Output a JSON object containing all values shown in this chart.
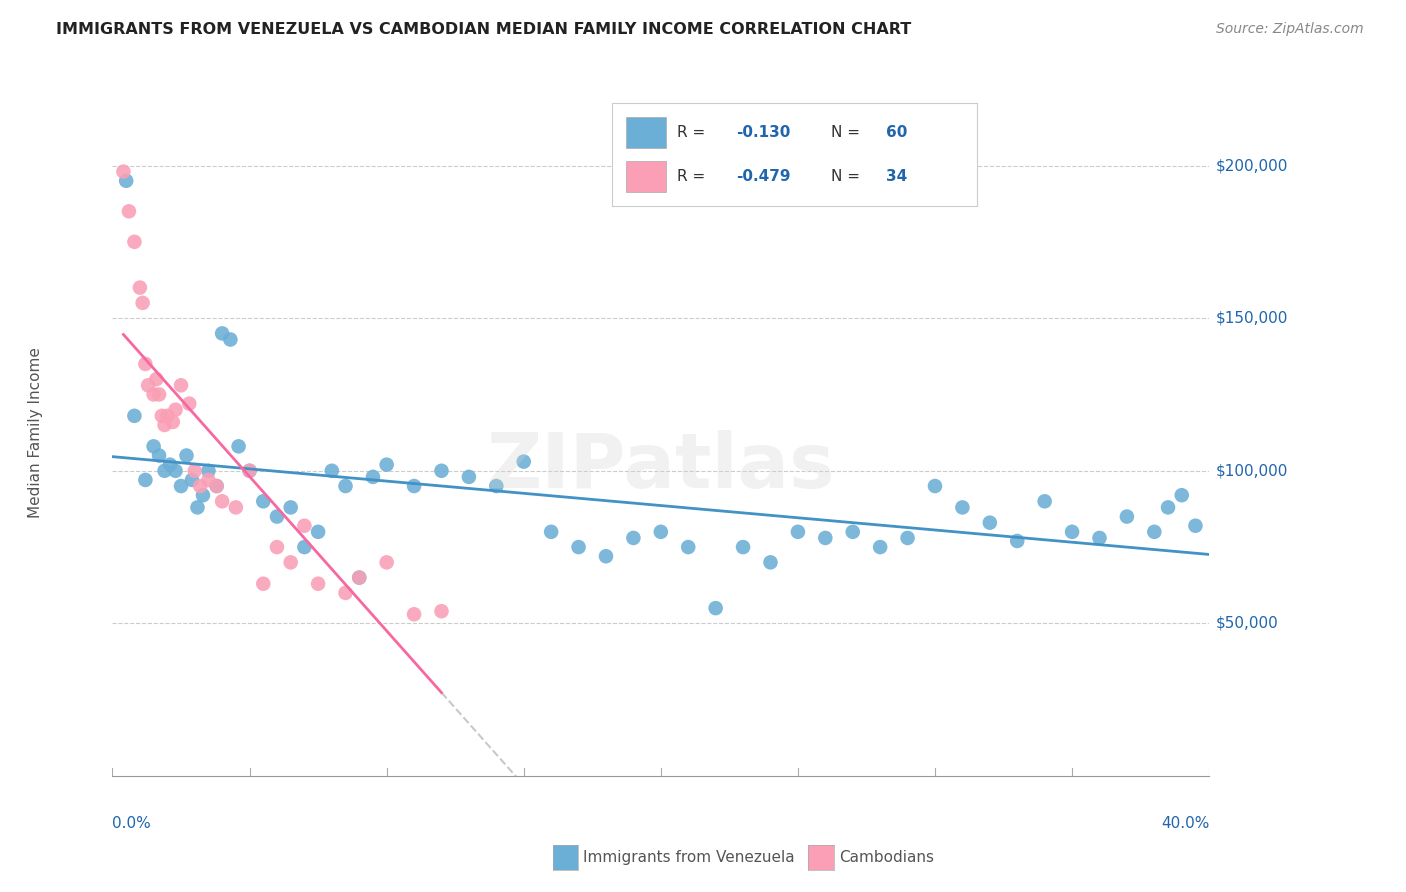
{
  "title": "IMMIGRANTS FROM VENEZUELA VS CAMBODIAN MEDIAN FAMILY INCOME CORRELATION CHART",
  "source": "Source: ZipAtlas.com",
  "ylabel": "Median Family Income",
  "legend_blue_label": "Immigrants from Venezuela",
  "legend_pink_label": "Cambodians",
  "watermark": "ZIPatlas",
  "blue_dot_color": "#6baed6",
  "pink_dot_color": "#fa9fb5",
  "blue_line_color": "#4292c6",
  "pink_line_color": "#f768a1",
  "dashed_ext_color": "#c8c8c8",
  "legend_text_color": "#2166ac",
  "xlim": [
    0.0,
    0.4
  ],
  "ylim": [
    0,
    225000
  ],
  "yticks": [
    50000,
    100000,
    150000,
    200000
  ],
  "ytick_labels": [
    "$50,000",
    "$100,000",
    "$150,000",
    "$200,000"
  ],
  "blue_x": [
    0.005,
    0.008,
    0.012,
    0.015,
    0.017,
    0.019,
    0.021,
    0.023,
    0.025,
    0.027,
    0.029,
    0.031,
    0.033,
    0.035,
    0.038,
    0.04,
    0.043,
    0.046,
    0.05,
    0.055,
    0.06,
    0.065,
    0.07,
    0.075,
    0.08,
    0.085,
    0.09,
    0.095,
    0.1,
    0.11,
    0.12,
    0.13,
    0.14,
    0.15,
    0.16,
    0.17,
    0.18,
    0.19,
    0.2,
    0.21,
    0.22,
    0.23,
    0.24,
    0.25,
    0.26,
    0.27,
    0.28,
    0.29,
    0.3,
    0.31,
    0.32,
    0.33,
    0.34,
    0.35,
    0.36,
    0.37,
    0.38,
    0.385,
    0.39,
    0.395
  ],
  "blue_y": [
    195000,
    118000,
    97000,
    108000,
    105000,
    100000,
    102000,
    100000,
    95000,
    105000,
    97000,
    88000,
    92000,
    100000,
    95000,
    145000,
    143000,
    108000,
    100000,
    90000,
    85000,
    88000,
    75000,
    80000,
    100000,
    95000,
    65000,
    98000,
    102000,
    95000,
    100000,
    98000,
    95000,
    103000,
    80000,
    75000,
    72000,
    78000,
    80000,
    75000,
    55000,
    75000,
    70000,
    80000,
    78000,
    80000,
    75000,
    78000,
    95000,
    88000,
    83000,
    77000,
    90000,
    80000,
    78000,
    85000,
    80000,
    88000,
    92000,
    82000
  ],
  "pink_x": [
    0.004,
    0.006,
    0.008,
    0.01,
    0.011,
    0.012,
    0.013,
    0.015,
    0.016,
    0.017,
    0.018,
    0.019,
    0.02,
    0.022,
    0.023,
    0.025,
    0.028,
    0.03,
    0.032,
    0.035,
    0.038,
    0.04,
    0.045,
    0.05,
    0.055,
    0.06,
    0.065,
    0.07,
    0.075,
    0.085,
    0.09,
    0.1,
    0.11,
    0.12
  ],
  "pink_y": [
    198000,
    185000,
    175000,
    160000,
    155000,
    135000,
    128000,
    125000,
    130000,
    125000,
    118000,
    115000,
    118000,
    116000,
    120000,
    128000,
    122000,
    100000,
    95000,
    97000,
    95000,
    90000,
    88000,
    100000,
    63000,
    75000,
    70000,
    82000,
    63000,
    60000,
    65000,
    70000,
    53000,
    54000
  ]
}
